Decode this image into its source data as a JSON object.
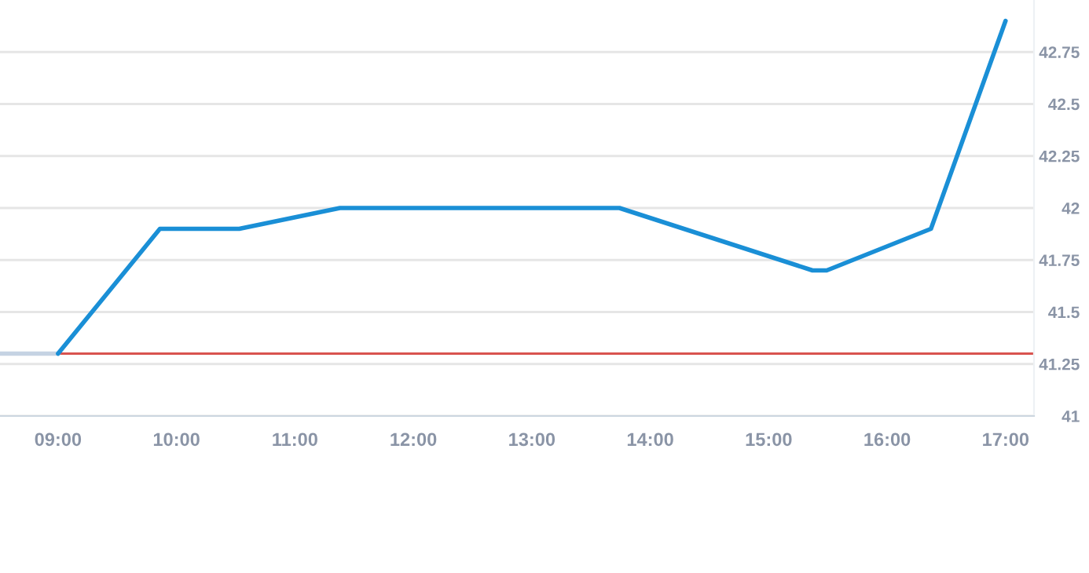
{
  "chart_data": {
    "type": "line",
    "series": [
      {
        "color": "#c5d3e3",
        "x": [
          8.51,
          9.0
        ],
        "values": [
          41.3,
          41.3
        ]
      },
      {
        "color": "#1a8fd6",
        "x": [
          9.0,
          9.86,
          10.53,
          11.38,
          13.74,
          15.37,
          15.49,
          16.37,
          17.0
        ],
        "values": [
          41.3,
          41.9,
          41.9,
          42.0,
          42.0,
          41.7,
          41.7,
          41.9,
          42.9
        ]
      }
    ],
    "xlim": [
      8.51,
      17.24
    ],
    "xticks": [
      {
        "value": 9,
        "label": "09:00"
      },
      {
        "value": 10,
        "label": "10:00"
      },
      {
        "value": 11,
        "label": "11:00"
      },
      {
        "value": 12,
        "label": "12:00"
      },
      {
        "value": 13,
        "label": "13:00"
      },
      {
        "value": 14,
        "label": "14:00"
      },
      {
        "value": 15,
        "label": "15:00"
      },
      {
        "value": 16,
        "label": "16:00"
      },
      {
        "value": 17,
        "label": "17:00"
      }
    ],
    "ylim": [
      41,
      43.0
    ],
    "yticks": [
      41,
      41.25,
      41.5,
      41.75,
      42,
      42.25,
      42.5,
      42.75
    ],
    "ref_lines": [
      {
        "axis": "y",
        "value": 41.3,
        "color": "#d9534f"
      }
    ],
    "grid": "y",
    "legend": false
  }
}
